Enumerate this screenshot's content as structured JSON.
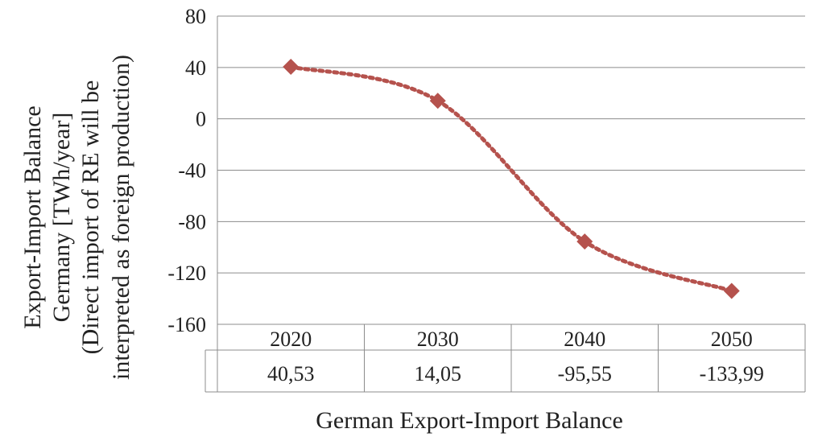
{
  "chart_data": {
    "type": "line",
    "categories": [
      "2020",
      "2030",
      "2040",
      "2050"
    ],
    "series": [
      {
        "values": [
          40.53,
          14.05,
          -95.55,
          -133.99
        ],
        "color": "#b5524d",
        "line_style": "dotted",
        "marker": "diamond"
      }
    ],
    "data_table": [
      "40,53",
      "14,05",
      "-95,55",
      "-133,99"
    ],
    "yticks": [
      "80",
      "40",
      "0",
      "-40",
      "-80",
      "-120",
      "-160"
    ],
    "ylim": [
      -160,
      80
    ],
    "grid": true,
    "ylabel_lines": [
      "Export-Import Balance",
      "Germany [TWh/year]",
      "(Direct import of RE will be",
      "interpreted as foreign production)"
    ],
    "xlabel": "German Export-Import Balance"
  }
}
